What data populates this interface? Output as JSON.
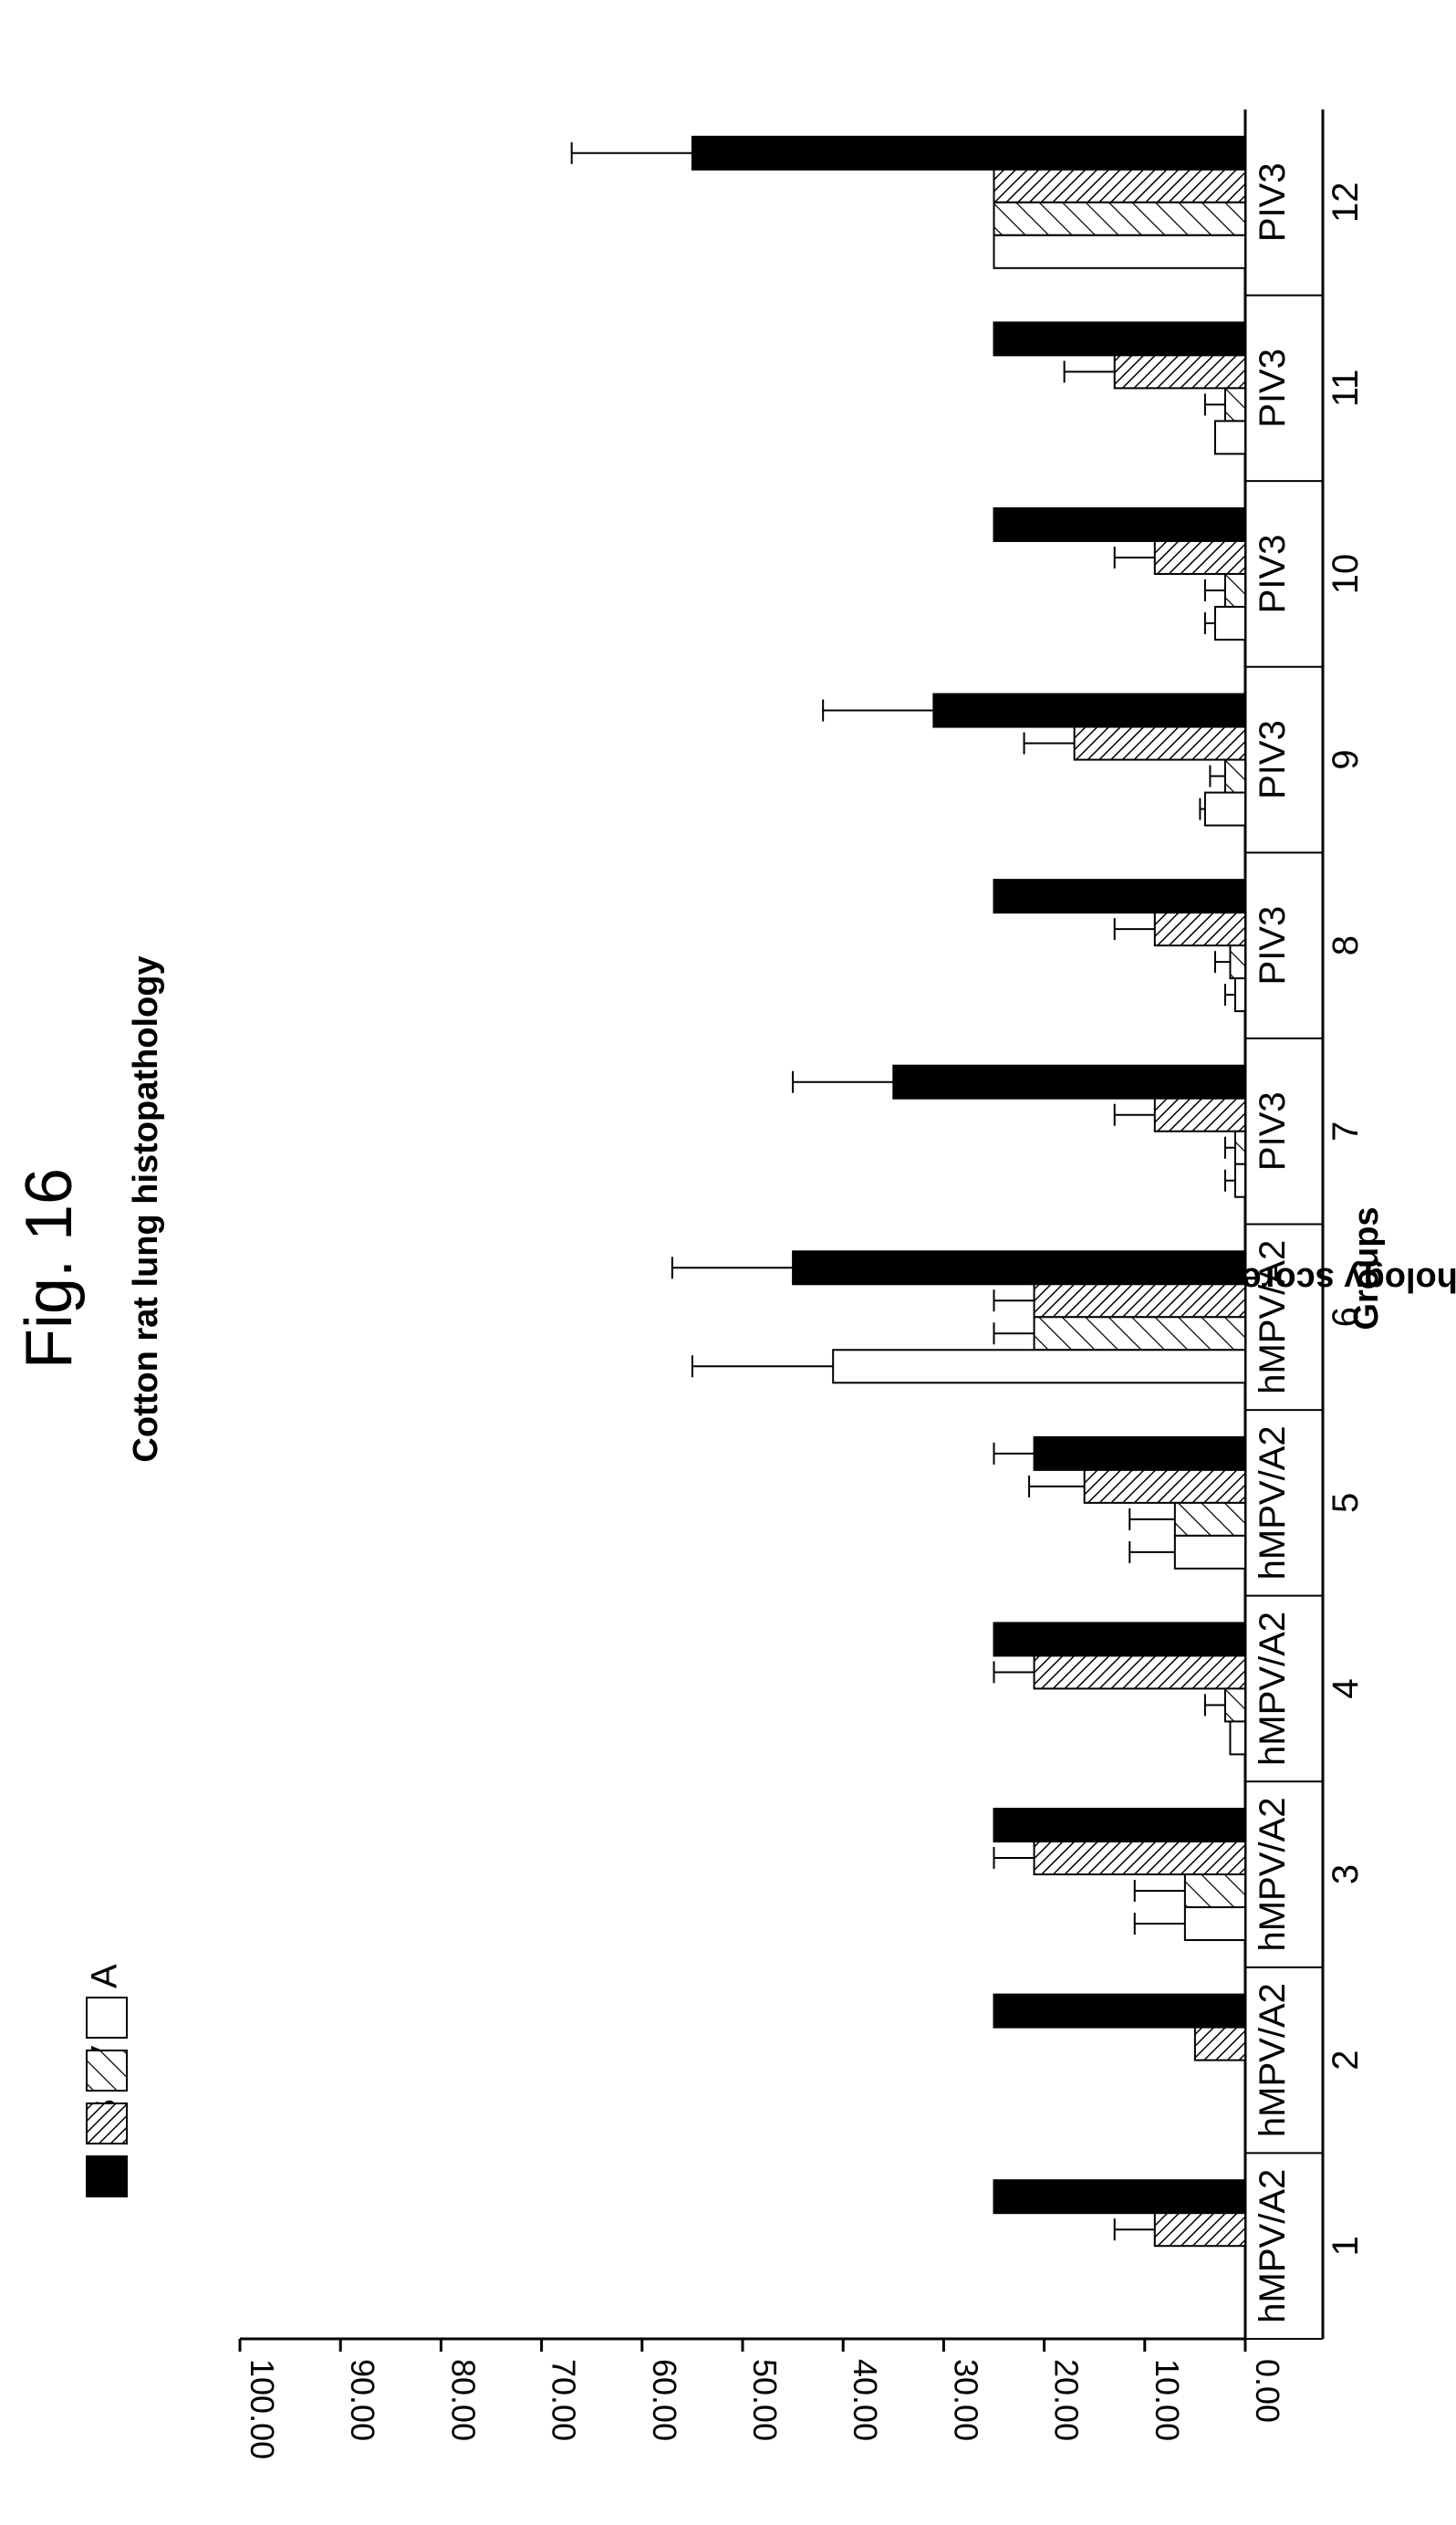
{
  "figure_label": "Fig. 16",
  "chart_data": {
    "type": "bar",
    "orientation": "rotated-90-ccw",
    "title": "Cotton rat lung histopathology",
    "xlabel": "Groups",
    "ylabel": "Avg. Pathology score",
    "ylim": [
      0,
      100
    ],
    "ytick_labels": [
      "0.00",
      "10.00",
      "20.00",
      "30.00",
      "40.00",
      "50.00",
      "60.00",
      "70.00",
      "80.00",
      "90.00",
      "100.00"
    ],
    "grid": false,
    "legend_position": "top-right",
    "categories": [
      "1",
      "2",
      "3",
      "4",
      "5",
      "6",
      "7",
      "8",
      "9",
      "10",
      "11",
      "12"
    ],
    "group_labels": [
      "hMPV/A2",
      "hMPV/A2",
      "hMPV/A2",
      "hMPV/A2",
      "hMPV/A2",
      "hMPV/A2",
      "PIV3",
      "PIV3",
      "PIV3",
      "PIV3",
      "PIV3",
      "PIV3"
    ],
    "series": [
      {
        "name": "PB",
        "pattern": "solid",
        "values": [
          25,
          25,
          25,
          25,
          21,
          45,
          35,
          25,
          31,
          25,
          25,
          55
        ],
        "errors": [
          0,
          0,
          0,
          0,
          4,
          12,
          10,
          0,
          11,
          0,
          0,
          12
        ]
      },
      {
        "name": "PV",
        "pattern": "dense-hatch",
        "values": [
          9,
          5,
          21,
          21,
          16,
          21,
          9,
          9,
          17,
          9,
          13,
          25
        ],
        "errors": [
          4,
          0,
          4,
          4,
          5.5,
          4,
          4,
          4,
          5,
          4,
          5,
          0
        ]
      },
      {
        "name": "IP",
        "pattern": "sparse-hatch",
        "values": [
          0,
          0,
          6,
          2,
          7,
          21,
          1,
          1.5,
          2,
          2,
          2,
          25
        ],
        "errors": [
          0,
          0,
          5,
          2,
          4.5,
          4,
          1,
          1.5,
          1.5,
          2,
          2,
          0
        ]
      },
      {
        "name": "A",
        "pattern": "open",
        "values": [
          0,
          0,
          6,
          1.5,
          7,
          41,
          1,
          1,
          4,
          3,
          3,
          25
        ],
        "errors": [
          0,
          0,
          5,
          0,
          4.5,
          14,
          1,
          1,
          0.5,
          1,
          0,
          0
        ]
      }
    ]
  }
}
